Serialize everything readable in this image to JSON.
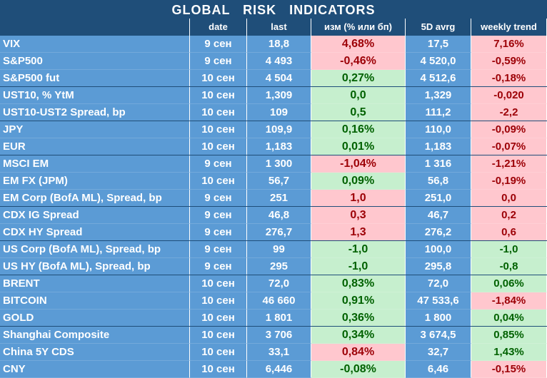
{
  "title": "GLOBAL   RISK   INDICATORS",
  "headers": [
    "",
    "date",
    "last",
    "изм (% или бп)",
    "5D avrg",
    "weekly trend"
  ],
  "colors": {
    "header_bg": "#1f4e79",
    "cell_bg": "#5b9bd5",
    "neg_bg": "#ffc7ce",
    "neg_text": "#9c0006",
    "pos_bg": "#c6efce",
    "pos_text": "#006100"
  },
  "rows": [
    {
      "name": "VIX",
      "date": "9 сен",
      "last": "18,8",
      "chg": "4,68%",
      "chg_color": "red",
      "avg": "17,5",
      "wk": "7,16%",
      "wk_color": "red"
    },
    {
      "name": "S&P500",
      "date": "9 сен",
      "last": "4 493",
      "chg": "-0,46%",
      "chg_color": "red",
      "avg": "4 520,0",
      "wk": "-0,59%",
      "wk_color": "red"
    },
    {
      "name": "S&P500 fut",
      "date": "10 сен",
      "last": "4 504",
      "chg": "0,27%",
      "chg_color": "green",
      "avg": "4 512,6",
      "wk": "-0,18%",
      "wk_color": "red"
    },
    {
      "name": "UST10, % YtM",
      "date": "10 сен",
      "last": "1,309",
      "chg": "0,0",
      "chg_color": "green",
      "avg": "1,329",
      "wk": "-0,020",
      "wk_color": "red"
    },
    {
      "name": "UST10-UST2 Spread, bp",
      "date": "10 сен",
      "last": "109",
      "chg": "0,5",
      "chg_color": "green",
      "avg": "111,2",
      "wk": "-2,2",
      "wk_color": "red"
    },
    {
      "name": "JPY",
      "date": "10 сен",
      "last": "109,9",
      "chg": "0,16%",
      "chg_color": "green",
      "avg": "110,0",
      "wk": "-0,09%",
      "wk_color": "red"
    },
    {
      "name": "EUR",
      "date": "10 сен",
      "last": "1,183",
      "chg": "0,01%",
      "chg_color": "green",
      "avg": "1,183",
      "wk": "-0,07%",
      "wk_color": "red"
    },
    {
      "name": "MSCI EM",
      "date": "9 сен",
      "last": "1 300",
      "chg": "-1,04%",
      "chg_color": "red",
      "avg": "1 316",
      "wk": "-1,21%",
      "wk_color": "red"
    },
    {
      "name": "EM FX (JPM)",
      "date": "10 сен",
      "last": "56,7",
      "chg": "0,09%",
      "chg_color": "green",
      "avg": "56,8",
      "wk": "-0,19%",
      "wk_color": "red"
    },
    {
      "name": "EM Corp (BofA ML), Spread, bp",
      "date": "9 сен",
      "last": "251",
      "chg": "1,0",
      "chg_color": "red",
      "avg": "251,0",
      "wk": "0,0",
      "wk_color": "red"
    },
    {
      "name": "CDX IG Spread",
      "date": "9 сен",
      "last": "46,8",
      "chg": "0,3",
      "chg_color": "red",
      "avg": "46,7",
      "wk": "0,2",
      "wk_color": "red"
    },
    {
      "name": "CDX HY Spread",
      "date": "9 сен",
      "last": "276,7",
      "chg": "1,3",
      "chg_color": "red",
      "avg": "276,2",
      "wk": "0,6",
      "wk_color": "red"
    },
    {
      "name": "US Corp (BofA ML), Spread, bp",
      "date": "9 сен",
      "last": "99",
      "chg": "-1,0",
      "chg_color": "green",
      "avg": "100,0",
      "wk": "-1,0",
      "wk_color": "green"
    },
    {
      "name": "US HY (BofA ML), Spread, bp",
      "date": "9 сен",
      "last": "295",
      "chg": "-1,0",
      "chg_color": "green",
      "avg": "295,8",
      "wk": "-0,8",
      "wk_color": "green"
    },
    {
      "name": "BRENT",
      "date": "10 сен",
      "last": "72,0",
      "chg": "0,83%",
      "chg_color": "green",
      "avg": "72,0",
      "wk": "0,06%",
      "wk_color": "green"
    },
    {
      "name": "BITCOIN",
      "date": "10 сен",
      "last": "46 660",
      "chg": "0,91%",
      "chg_color": "green",
      "avg": "47 533,6",
      "wk": "-1,84%",
      "wk_color": "red"
    },
    {
      "name": "GOLD",
      "date": "10 сен",
      "last": "1 801",
      "chg": "0,36%",
      "chg_color": "green",
      "avg": "1 800",
      "wk": "0,04%",
      "wk_color": "green"
    },
    {
      "name": "Shanghai Composite",
      "date": "10 сен",
      "last": "3 706",
      "chg": "0,34%",
      "chg_color": "green",
      "avg": "3 674,5",
      "wk": "0,85%",
      "wk_color": "green"
    },
    {
      "name": "China 5Y CDS",
      "date": "10 сен",
      "last": "33,1",
      "chg": "0,84%",
      "chg_color": "red",
      "avg": "32,7",
      "wk": "1,43%",
      "wk_color": "green"
    },
    {
      "name": "CNY",
      "date": "10 сен",
      "last": "6,446",
      "chg": "-0,08%",
      "chg_color": "green",
      "avg": "6,46",
      "wk": "-0,15%",
      "wk_color": "red"
    }
  ]
}
